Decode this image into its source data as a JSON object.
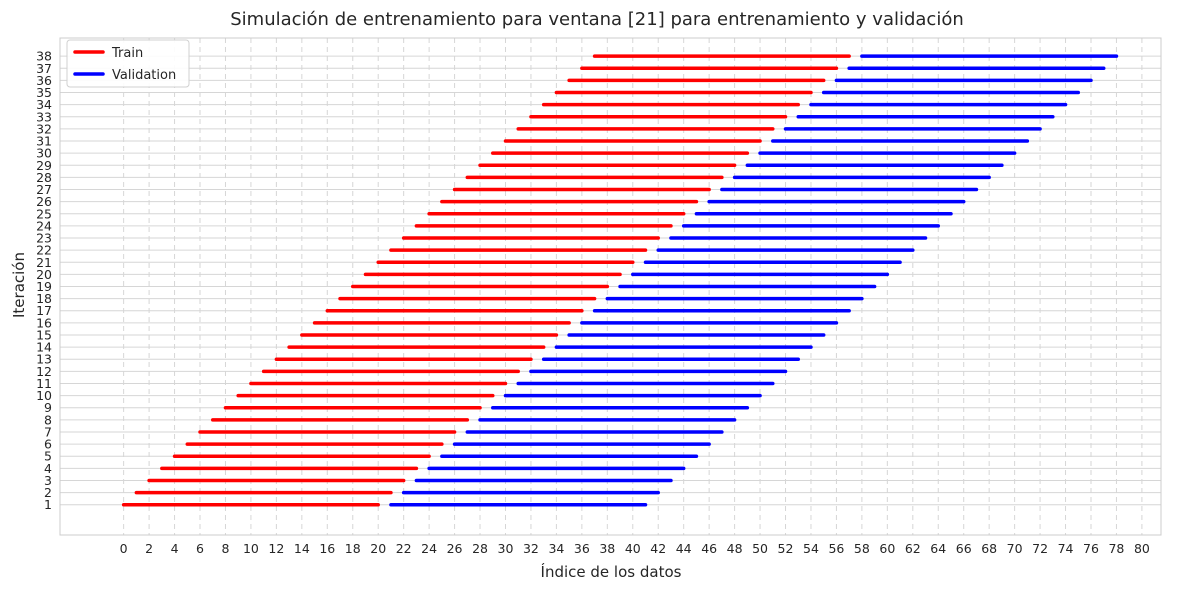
{
  "chart_data": {
    "type": "line",
    "title": "Simulación de entrenamiento para ventana [21] para entrenamiento y validación",
    "xlabel": "Índice de los datos",
    "ylabel": "Iteración",
    "xlim": [
      -5,
      81.5
    ],
    "ylim": [
      -1.5,
      39.5
    ],
    "x_ticks": [
      0,
      2,
      4,
      6,
      8,
      10,
      12,
      14,
      16,
      18,
      20,
      22,
      24,
      26,
      28,
      30,
      32,
      34,
      36,
      38,
      40,
      42,
      44,
      46,
      48,
      50,
      52,
      54,
      56,
      58,
      60,
      62,
      64,
      66,
      68,
      70,
      72,
      74,
      76,
      78,
      80
    ],
    "y_ticks": [
      1,
      2,
      3,
      4,
      5,
      6,
      7,
      8,
      9,
      10,
      11,
      12,
      13,
      14,
      15,
      16,
      17,
      18,
      19,
      20,
      21,
      22,
      23,
      24,
      25,
      26,
      27,
      28,
      29,
      30,
      31,
      32,
      33,
      34,
      35,
      36,
      37,
      38
    ],
    "grid": true,
    "legend_position": "top-left",
    "iterations": 38,
    "series": [
      {
        "name": "Train",
        "color": "#ff0000",
        "segments": [
          [
            0,
            20
          ],
          [
            1,
            21
          ],
          [
            2,
            22
          ],
          [
            3,
            23
          ],
          [
            4,
            24
          ],
          [
            5,
            25
          ],
          [
            6,
            26
          ],
          [
            7,
            27
          ],
          [
            8,
            28
          ],
          [
            9,
            29
          ],
          [
            10,
            30
          ],
          [
            11,
            31
          ],
          [
            12,
            32
          ],
          [
            13,
            33
          ],
          [
            14,
            34
          ],
          [
            15,
            35
          ],
          [
            16,
            36
          ],
          [
            17,
            37
          ],
          [
            18,
            38
          ],
          [
            19,
            39
          ],
          [
            20,
            40
          ],
          [
            21,
            41
          ],
          [
            22,
            42
          ],
          [
            23,
            43
          ],
          [
            24,
            44
          ],
          [
            25,
            45
          ],
          [
            26,
            46
          ],
          [
            27,
            47
          ],
          [
            28,
            48
          ],
          [
            29,
            49
          ],
          [
            30,
            50
          ],
          [
            31,
            51
          ],
          [
            32,
            52
          ],
          [
            33,
            53
          ],
          [
            34,
            54
          ],
          [
            35,
            55
          ],
          [
            36,
            56
          ],
          [
            37,
            57
          ]
        ]
      },
      {
        "name": "Validation",
        "color": "#0000ff",
        "segments": [
          [
            21,
            41
          ],
          [
            22,
            42
          ],
          [
            23,
            43
          ],
          [
            24,
            44
          ],
          [
            25,
            45
          ],
          [
            26,
            46
          ],
          [
            27,
            47
          ],
          [
            28,
            48
          ],
          [
            29,
            49
          ],
          [
            30,
            50
          ],
          [
            31,
            51
          ],
          [
            32,
            52
          ],
          [
            33,
            53
          ],
          [
            34,
            54
          ],
          [
            35,
            55
          ],
          [
            36,
            56
          ],
          [
            37,
            57
          ],
          [
            38,
            58
          ],
          [
            39,
            59
          ],
          [
            40,
            60
          ],
          [
            41,
            61
          ],
          [
            42,
            62
          ],
          [
            43,
            63
          ],
          [
            44,
            64
          ],
          [
            45,
            65
          ],
          [
            46,
            66
          ],
          [
            47,
            67
          ],
          [
            48,
            68
          ],
          [
            49,
            69
          ],
          [
            50,
            70
          ],
          [
            51,
            71
          ],
          [
            52,
            72
          ],
          [
            53,
            73
          ],
          [
            54,
            74
          ],
          [
            55,
            75
          ],
          [
            56,
            76
          ],
          [
            57,
            77
          ],
          [
            58,
            78
          ]
        ]
      }
    ]
  }
}
